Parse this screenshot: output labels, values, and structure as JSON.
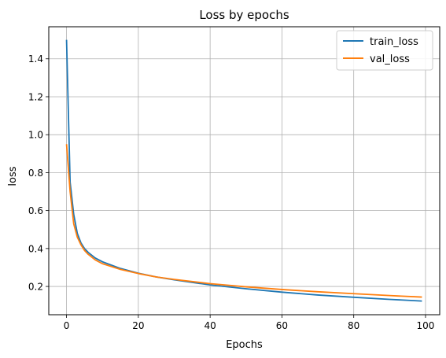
{
  "chart_data": {
    "type": "line",
    "title": "Loss by epochs",
    "xlabel": "Epochs",
    "ylabel": "loss",
    "xlim": [
      -4.95,
      103.95
    ],
    "ylim": [
      0.051,
      1.569
    ],
    "xticks": [
      0,
      20,
      40,
      60,
      80,
      100
    ],
    "yticks": [
      0.2,
      0.4,
      0.6,
      0.8,
      1.0,
      1.2,
      1.4
    ],
    "grid": true,
    "legend_position": "top-right",
    "x": [
      0,
      1,
      2,
      3,
      4,
      5,
      6,
      8,
      10,
      15,
      20,
      25,
      30,
      40,
      50,
      60,
      70,
      80,
      90,
      99
    ],
    "series": [
      {
        "name": "train_loss",
        "color": "#1f77b4",
        "values": [
          1.5,
          0.75,
          0.58,
          0.48,
          0.43,
          0.4,
          0.38,
          0.35,
          0.33,
          0.295,
          0.27,
          0.25,
          0.235,
          0.208,
          0.188,
          0.17,
          0.155,
          0.143,
          0.132,
          0.123
        ]
      },
      {
        "name": "val_loss",
        "color": "#ff7f0e",
        "values": [
          0.95,
          0.7,
          0.53,
          0.46,
          0.42,
          0.39,
          0.37,
          0.34,
          0.32,
          0.29,
          0.268,
          0.25,
          0.237,
          0.215,
          0.198,
          0.184,
          0.172,
          0.162,
          0.152,
          0.144
        ]
      }
    ]
  }
}
